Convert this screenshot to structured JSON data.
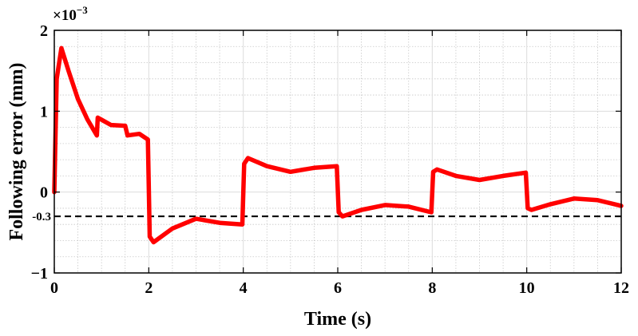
{
  "chart_data": {
    "type": "line",
    "xlabel": "Time (s)",
    "ylabel": "Following error (mm)",
    "exponent_base": "×10",
    "exponent_power": "−3",
    "xlim": [
      0,
      12
    ],
    "ylim": [
      -1,
      2
    ],
    "x_ticks": [
      0,
      2,
      4,
      6,
      8,
      10,
      12
    ],
    "x_tick_labels": [
      "0",
      "2",
      "4",
      "6",
      "8",
      "10",
      "12"
    ],
    "y_ticks": [
      -1,
      0,
      1,
      2
    ],
    "y_tick_labels": [
      "−1",
      "0",
      "1",
      "2"
    ],
    "grid": true,
    "minor_grid": true,
    "reference_line": {
      "y": -0.3,
      "label": "-0.3",
      "style": "dashed",
      "color": "#000000"
    },
    "series": [
      {
        "color": "#ff0000",
        "x": [
          0,
          0.05,
          0.15,
          0.3,
          0.5,
          0.7,
          0.9,
          0.92,
          1.2,
          1.5,
          1.55,
          1.8,
          1.98,
          2.02,
          2.1,
          2.5,
          3.0,
          3.5,
          3.98,
          4.02,
          4.1,
          4.5,
          5.0,
          5.5,
          5.98,
          6.02,
          6.1,
          6.5,
          7.0,
          7.5,
          7.98,
          8.02,
          8.1,
          8.5,
          9.0,
          9.5,
          9.98,
          10.02,
          10.1,
          10.5,
          11.0,
          11.5,
          12.0
        ],
        "y": [
          0.0,
          1.4,
          1.78,
          1.5,
          1.15,
          0.9,
          0.7,
          0.92,
          0.83,
          0.82,
          0.7,
          0.72,
          0.65,
          -0.55,
          -0.62,
          -0.45,
          -0.33,
          -0.38,
          -0.4,
          0.35,
          0.42,
          0.32,
          0.25,
          0.3,
          0.32,
          -0.25,
          -0.3,
          -0.22,
          -0.16,
          -0.18,
          -0.25,
          0.25,
          0.28,
          0.2,
          0.15,
          0.2,
          0.24,
          -0.2,
          -0.22,
          -0.15,
          -0.08,
          -0.1,
          -0.17
        ]
      }
    ]
  }
}
